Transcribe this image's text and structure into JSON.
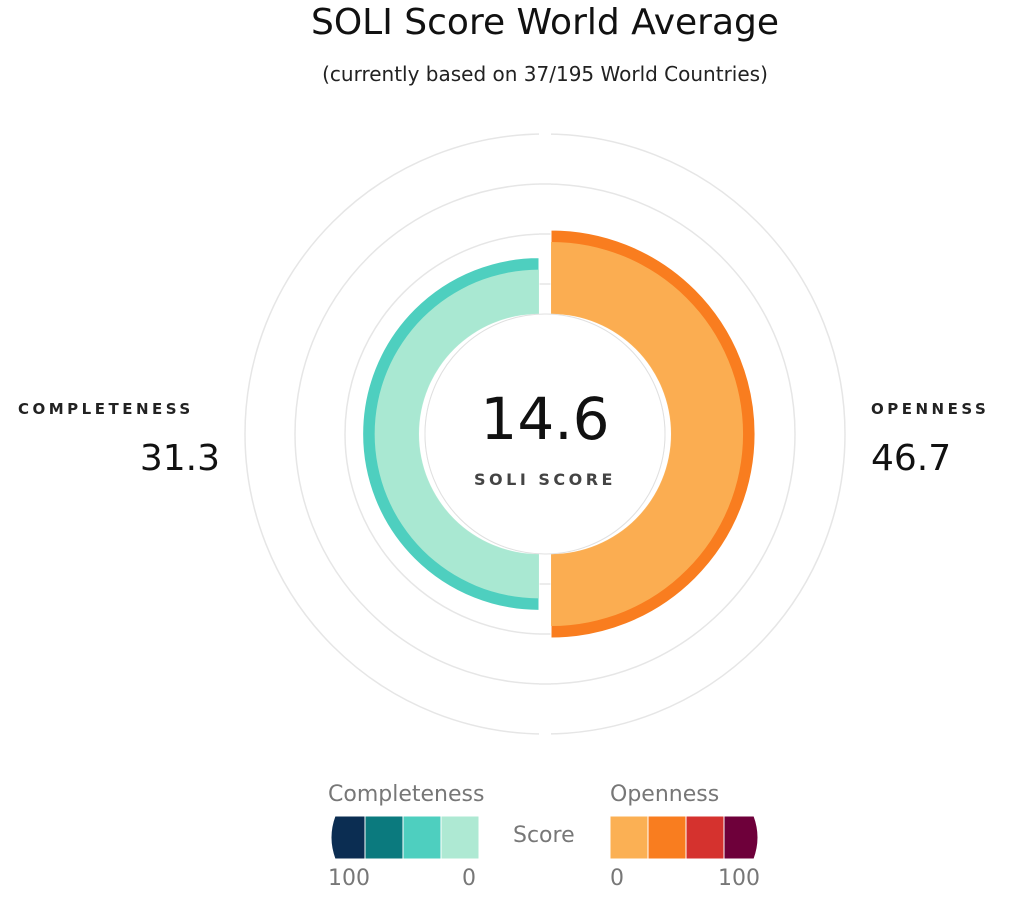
{
  "title": "SOLI Score World Average",
  "subtitle": "(currently based on 37/195 World Countries)",
  "center": {
    "value": "14.6",
    "label": "SOLI SCORE"
  },
  "completeness": {
    "label": "COMPLETENESS",
    "value": "31.3"
  },
  "openness": {
    "label": "OPENNESS",
    "value": "46.7"
  },
  "legend": {
    "completeness_title": "Completeness",
    "openness_title": "Openness",
    "score_label": "Score",
    "completeness_max": "100",
    "completeness_min": "0",
    "openness_min": "0",
    "openness_max": "100",
    "completeness_colors": [
      "#0b2d52",
      "#0b7a7e",
      "#4ecfbf",
      "#aee9d3"
    ],
    "openness_colors": [
      "#fbb054",
      "#f97d1f",
      "#d5322e",
      "#6e003a"
    ]
  },
  "chart_data": {
    "type": "radial-bar",
    "title": "SOLI Score World Average",
    "subtitle": "(currently based on 37/195 World Countries)",
    "score": 14.6,
    "series": [
      {
        "name": "Completeness",
        "value": 31.3,
        "side": "left",
        "color": "#4ecfbf",
        "inner_color": "#aee9d3"
      },
      {
        "name": "Openness",
        "value": 46.7,
        "side": "right",
        "color": "#f97d1f",
        "inner_color": "#fbb054"
      }
    ],
    "scale": [
      0,
      100
    ],
    "grid": true
  }
}
